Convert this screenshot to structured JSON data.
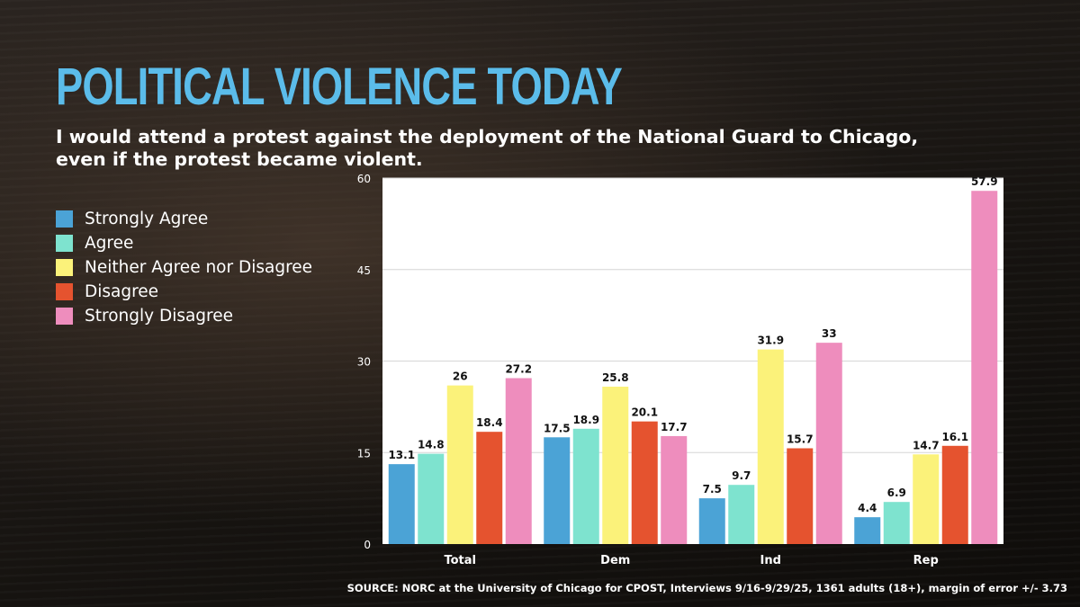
{
  "title": "POLITICAL VIOLENCE TODAY",
  "subtitle": "I would attend a protest against the deployment of the National Guard to Chicago, even if the protest became violent.",
  "source": "SOURCE: NORC at the University of Chicago for CPOST, Interviews 9/16-9/29/25, 1361 adults (18+), margin of error +/- 3.73",
  "colors": {
    "title": "#5bbcea",
    "strongly_agree": "#4ba3d6",
    "agree": "#7ee3cf",
    "neither": "#fbf27a",
    "disagree": "#e5532f",
    "strongly_disagree": "#ee8dbd"
  },
  "chart_data": {
    "type": "bar",
    "categories": [
      "Total",
      "Dem",
      "Ind",
      "Rep"
    ],
    "series": [
      {
        "name": "Strongly Agree",
        "color": "#4ba3d6",
        "values": [
          13.1,
          17.5,
          7.5,
          4.4
        ]
      },
      {
        "name": "Agree",
        "color": "#7ee3cf",
        "values": [
          14.8,
          18.9,
          9.7,
          6.9
        ]
      },
      {
        "name": "Neither Agree nor Disagree",
        "color": "#fbf27a",
        "values": [
          26,
          25.8,
          31.9,
          14.7
        ]
      },
      {
        "name": "Disagree",
        "color": "#e5532f",
        "values": [
          18.4,
          20.1,
          15.7,
          16.1
        ]
      },
      {
        "name": "Strongly Disagree",
        "color": "#ee8dbd",
        "values": [
          27.2,
          17.7,
          33,
          57.9
        ]
      }
    ],
    "ylim": [
      0,
      60
    ],
    "yticks": [
      "0",
      "15",
      "30",
      "45",
      "60"
    ],
    "grid": true,
    "legend_position": "left",
    "data_labels": true
  }
}
